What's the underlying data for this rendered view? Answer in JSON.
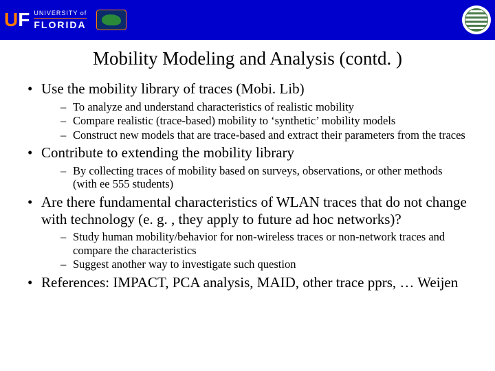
{
  "header": {
    "uf_u": "U",
    "uf_f": "F",
    "uf_top": "UNIVERSITY of",
    "uf_bottom": "FLORIDA"
  },
  "title": "Mobility Modeling and Analysis (contd. )",
  "bullets": [
    {
      "text": "Use the mobility library of traces (Mobi. Lib)",
      "sub": [
        "To analyze and understand characteristics of realistic mobility",
        "Compare realistic (trace-based) mobility to ‘synthetic’ mobility models",
        "Construct new models that are trace-based and extract their parameters from the traces"
      ]
    },
    {
      "text": "Contribute to extending the mobility library",
      "sub": [
        "By collecting traces of mobility based on surveys, observations, or other methods (with ee 555 students)"
      ]
    },
    {
      "text": "Are there fundamental characteristics of WLAN traces that do not change with technology (e. g. , they apply to future ad hoc networks)?",
      "sub": [
        "Study human mobility/behavior for non-wireless traces or non-network traces and compare the characteristics",
        "Suggest another way to investigate such question"
      ]
    },
    {
      "text": "References: IMPACT, PCA analysis, MAID, other trace pprs, … Weijen",
      "sub": []
    }
  ]
}
